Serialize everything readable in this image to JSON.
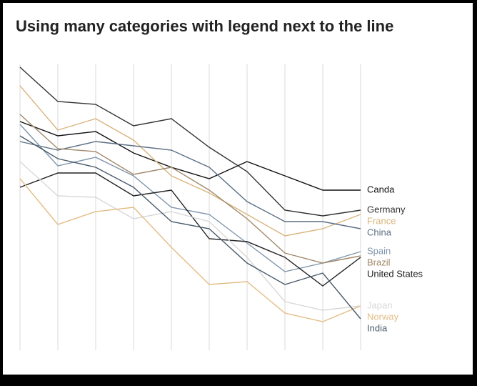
{
  "chart_data": {
    "type": "line",
    "title": "Using many categories with legend next to the line",
    "categories": [
      null,
      null,
      null,
      null,
      null,
      null,
      null,
      null,
      null,
      null
    ],
    "ylim": [
      0,
      100
    ],
    "grid": true,
    "series": [
      {
        "name": "Canda",
        "color": "#111111",
        "values": [
          80,
          75,
          76.5,
          69,
          64,
          60,
          66,
          61,
          56,
          56
        ]
      },
      {
        "name": "Germany",
        "color": "#333333",
        "values": [
          99,
          87,
          86,
          78.5,
          81,
          71,
          62.5,
          49,
          47,
          49
        ]
      },
      {
        "name": "France",
        "color": "#d9b47e",
        "values": [
          92.5,
          77,
          81,
          73.5,
          61,
          55,
          47.5,
          40,
          42.5,
          47.5
        ]
      },
      {
        "name": "China",
        "color": "#5b6f85",
        "values": [
          73,
          70,
          73,
          71.5,
          70,
          64,
          52,
          45,
          45,
          42.5
        ]
      },
      {
        "name": "Spain",
        "color": "#7f95ab",
        "values": [
          79,
          64.5,
          67.5,
          61,
          50,
          47.5,
          37.5,
          27.5,
          30.5,
          34.5
        ]
      },
      {
        "name": "Brazil",
        "color": "#a0886a",
        "values": [
          82.5,
          70.5,
          69.5,
          61.5,
          64,
          56,
          46,
          34,
          30.5,
          33
        ]
      },
      {
        "name": "United States",
        "color": "#222222",
        "values": [
          57,
          62,
          62,
          54,
          56,
          39,
          38,
          32.5,
          22.5,
          32.5
        ]
      },
      {
        "name": "Japan",
        "color": "#d8d8d8",
        "values": [
          66,
          54,
          53.5,
          46,
          48.5,
          45,
          32.5,
          17,
          14,
          15.5
        ]
      },
      {
        "name": "Norway",
        "color": "#e3bd85",
        "values": [
          60,
          44,
          48.5,
          50,
          36,
          23,
          24,
          13,
          10,
          15.5
        ]
      },
      {
        "name": "India",
        "color": "#4a5a6a",
        "values": [
          75,
          67,
          64,
          57,
          45,
          42.5,
          30.5,
          23,
          27,
          11
        ]
      }
    ]
  }
}
